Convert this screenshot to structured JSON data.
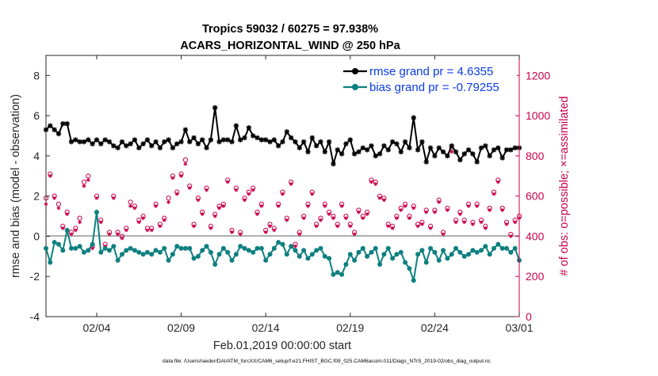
{
  "chart_data": {
    "type": "line",
    "title": "Tropics 59032 / 60275 = 97.938%",
    "subtitle": "ACARS_HORIZONTAL_WIND @ 250 hPa",
    "xlabel": "Feb.01,2019 00:00:00 start",
    "ylabel": "rmse and bias (model - observation)",
    "y2label": "# of obs: o=possible; ×=assimilated",
    "footnote": "data file: /Users/raeder/DAI/ATM_forcXX/CAM6_setup/f.e21.FHIST_BGC.f09_025.CAM6assim.011/Diags_NTrS_2019-02/obs_diag_output.nc",
    "x_range_days": [
      0,
      28
    ],
    "ylim": [
      -4,
      9
    ],
    "y2lim": [
      0,
      1300
    ],
    "y_ticks": [
      "-4",
      "-2",
      "0",
      "2",
      "4",
      "6",
      "8"
    ],
    "y2_ticks": [
      "0",
      "200",
      "400",
      "600",
      "800",
      "1000",
      "1200"
    ],
    "x_ticks": [
      {
        "label": "02/04",
        "day": 3
      },
      {
        "label": "02/09",
        "day": 8
      },
      {
        "label": "02/14",
        "day": 13
      },
      {
        "label": "02/19",
        "day": 18
      },
      {
        "label": "02/24",
        "day": 23
      },
      {
        "label": "03/01",
        "day": 28
      }
    ],
    "step_days": 0.25,
    "series": [
      {
        "name": "rmse grand pr = 4.6355",
        "color": "#000000",
        "axis": "left",
        "values": [
          5.3,
          5.5,
          5.3,
          5.1,
          5.6,
          5.6,
          4.7,
          4.8,
          4.7,
          4.7,
          4.8,
          4.6,
          4.8,
          4.6,
          4.8,
          4.7,
          4.5,
          4.4,
          4.7,
          4.5,
          4.6,
          4.8,
          4.4,
          4.6,
          4.8,
          4.5,
          4.7,
          4.4,
          4.7,
          4.8,
          4.4,
          4.6,
          4.7,
          5.3,
          4.7,
          4.9,
          4.6,
          4.8,
          4.4,
          4.8,
          6.4,
          4.7,
          4.8,
          4.8,
          4.7,
          5.5,
          4.8,
          4.9,
          5.4,
          5.0,
          4.9,
          4.8,
          4.8,
          4.7,
          4.8,
          4.5,
          4.7,
          5.2,
          4.9,
          4.7,
          4.4,
          4.7,
          4.2,
          4.9,
          4.5,
          4.7,
          4.2,
          4.7,
          3.6,
          4.3,
          4.1,
          4.6,
          4.8,
          4.1,
          4.2,
          4.4,
          4.3,
          4.5,
          4.0,
          4.1,
          4.5,
          4.3,
          4.7,
          4.6,
          4.2,
          4.7,
          4.4,
          5.9,
          4.3,
          4.7,
          3.7,
          4.4,
          4.0,
          4.4,
          4.2,
          4.0,
          4.5,
          4.2,
          3.8,
          4.1,
          4.3,
          4.1,
          3.7,
          4.4,
          4.5,
          4.0,
          4.3,
          4.4,
          3.9,
          4.3,
          4.3,
          4.4,
          4.4
        ],
        "label_color": "#0a3ce6"
      },
      {
        "name": "bias grand pr = -0.79255",
        "color": "#0e8080",
        "axis": "left",
        "values": [
          -0.6,
          -1.3,
          -0.3,
          -0.4,
          -0.7,
          0.3,
          -0.6,
          -0.6,
          -0.5,
          -0.8,
          -0.7,
          -0.4,
          1.2,
          -0.8,
          -0.6,
          -0.7,
          -0.5,
          -1.2,
          -0.9,
          -0.7,
          -0.6,
          -0.7,
          -0.8,
          -0.9,
          -0.8,
          -0.9,
          -0.7,
          -0.8,
          -0.6,
          -1.2,
          -0.9,
          -0.5,
          -0.6,
          -0.6,
          -0.6,
          -1.1,
          -1.0,
          -0.7,
          -0.5,
          -0.8,
          -1.4,
          -0.9,
          -0.6,
          -0.8,
          -1.2,
          -0.9,
          -0.5,
          -0.6,
          -0.7,
          -0.8,
          -0.6,
          -0.6,
          -1.2,
          -0.9,
          -0.6,
          -0.3,
          -0.4,
          -0.9,
          -0.5,
          -0.7,
          -1.0,
          -0.7,
          -1.1,
          -0.9,
          -0.7,
          -0.6,
          -1.0,
          -1.1,
          -1.9,
          -1.8,
          -1.9,
          -1.4,
          -0.9,
          -1.2,
          -0.8,
          -0.6,
          -1.0,
          -0.8,
          -0.6,
          -1.4,
          -0.9,
          -0.6,
          -1.1,
          -0.9,
          -0.8,
          -1.3,
          -1.6,
          -2.2,
          -0.9,
          -0.7,
          -1.3,
          -0.6,
          -0.8,
          -1.2,
          -0.7,
          -1.1,
          -0.9,
          -0.6,
          -0.8,
          -1.0,
          -0.9,
          -0.7,
          -0.8,
          -0.7,
          -0.5,
          -0.9,
          -0.6,
          -0.4,
          -0.6,
          -0.6,
          -0.8,
          -0.6,
          -1.2
        ],
        "label_color": "#0a3ce6"
      },
      {
        "name": "# of obs possible",
        "color": "#c8004a",
        "axis": "right",
        "marker": "circle",
        "values": [
          590,
          710,
          600,
          560,
          450,
          520,
          420,
          440,
          490,
          670,
          700,
          350,
          600,
          480,
          360,
          420,
          600,
          420,
          400,
          440,
          570,
          550,
          480,
          500,
          440,
          440,
          560,
          460,
          490,
          590,
          700,
          620,
          710,
          780,
          650,
          460,
          590,
          520,
          640,
          450,
          510,
          550,
          560,
          680,
          430,
          640,
          420,
          590,
          620,
          640,
          520,
          560,
          430,
          460,
          440,
          560,
          620,
          490,
          670,
          360,
          420,
          500,
          560,
          620,
          460,
          490,
          560,
          520,
          500,
          460,
          560,
          500,
          460,
          420,
          530,
          500,
          520,
          680,
          670,
          600,
          590,
          460,
          450,
          500,
          540,
          560,
          500,
          550,
          460,
          470,
          530,
          450,
          530,
          580,
          420,
          540,
          840,
          480,
          520,
          480,
          560,
          470,
          560,
          480,
          450,
          540,
          620,
          680,
          540,
          470,
          410,
          480,
          500
        ],
        "label_color": "#c8004a"
      },
      {
        "name": "# of obs assimilated",
        "color": "#c8004a",
        "axis": "right",
        "marker": "asterisk",
        "values": [
          560,
          700,
          590,
          540,
          440,
          510,
          410,
          430,
          470,
          650,
          680,
          340,
          590,
          470,
          350,
          410,
          590,
          410,
          390,
          430,
          550,
          540,
          470,
          490,
          430,
          430,
          550,
          450,
          480,
          570,
          690,
          610,
          700,
          760,
          640,
          450,
          580,
          510,
          630,
          440,
          500,
          540,
          550,
          670,
          420,
          630,
          410,
          580,
          610,
          630,
          510,
          550,
          420,
          450,
          430,
          550,
          610,
          480,
          660,
          350,
          410,
          490,
          550,
          610,
          450,
          480,
          550,
          510,
          490,
          450,
          550,
          490,
          450,
          410,
          520,
          490,
          510,
          670,
          660,
          590,
          580,
          450,
          440,
          490,
          530,
          550,
          490,
          540,
          450,
          460,
          520,
          440,
          520,
          570,
          410,
          530,
          820,
          470,
          510,
          470,
          550,
          460,
          550,
          470,
          440,
          530,
          610,
          670,
          530,
          460,
          400,
          470,
          490
        ],
        "label_color": "#c8004a"
      }
    ]
  }
}
